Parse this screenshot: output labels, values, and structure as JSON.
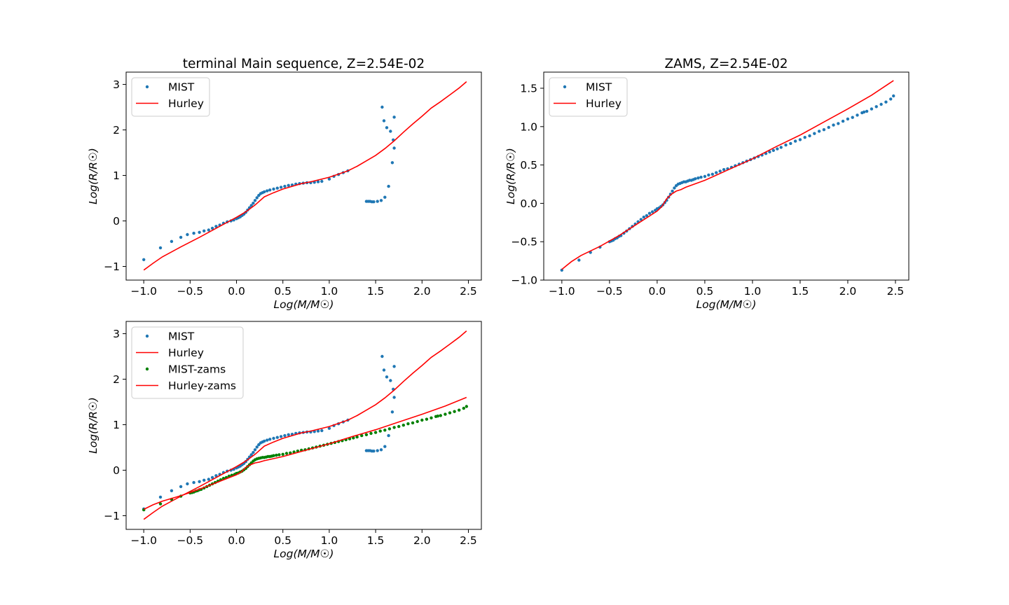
{
  "chart_data": [
    {
      "type": "scatter",
      "title": "terminal Main sequence, Z=2.54E-02",
      "xlabel": "Log(M/M☉)",
      "ylabel": "Log(R/R☉)",
      "xlim": [
        -1.19,
        2.64
      ],
      "ylim": [
        -1.3,
        3.27
      ],
      "xticks": [
        "−1.0",
        "−0.5",
        "0.0",
        "0.5",
        "1.0",
        "1.5",
        "2.0",
        "2.5"
      ],
      "yticks": [
        "−1",
        "0",
        "1",
        "2",
        "3"
      ],
      "grid": false,
      "legend": "top-left",
      "series": [
        {
          "name": "MIST",
          "kind": "points",
          "color": "#1f77b4",
          "key": "mist_tams"
        },
        {
          "name": "Hurley",
          "kind": "line",
          "color": "#ff0000",
          "key": "hurley_tams"
        }
      ]
    },
    {
      "type": "scatter",
      "title": "ZAMS, Z=2.54E-02",
      "xlabel": "Log(M/M☉)",
      "ylabel": "Log(R/R☉)",
      "xlim": [
        -1.19,
        2.64
      ],
      "ylim": [
        -1.0,
        1.71
      ],
      "xticks": [
        "−1.0",
        "−0.5",
        "0.0",
        "0.5",
        "1.0",
        "1.5",
        "2.0",
        "2.5"
      ],
      "yticks": [
        "−1.0",
        "−0.5",
        "0.0",
        "0.5",
        "1.0",
        "1.5"
      ],
      "grid": false,
      "legend": "top-left",
      "series": [
        {
          "name": "MIST",
          "kind": "points",
          "color": "#1f77b4",
          "key": "mist_zams"
        },
        {
          "name": "Hurley",
          "kind": "line",
          "color": "#ff0000",
          "key": "hurley_zams"
        }
      ]
    },
    {
      "type": "scatter",
      "title": "",
      "xlabel": "Log(M/M☉)",
      "ylabel": "Log(R/R☉)",
      "xlim": [
        -1.19,
        2.64
      ],
      "ylim": [
        -1.3,
        3.27
      ],
      "xticks": [
        "−1.0",
        "−0.5",
        "0.0",
        "0.5",
        "1.0",
        "1.5",
        "2.0",
        "2.5"
      ],
      "yticks": [
        "−1",
        "0",
        "1",
        "2",
        "3"
      ],
      "grid": false,
      "legend": "top-left",
      "series": [
        {
          "name": "MIST",
          "kind": "points",
          "color": "#1f77b4",
          "key": "mist_tams"
        },
        {
          "name": "Hurley",
          "kind": "line",
          "color": "#ff0000",
          "key": "hurley_tams"
        },
        {
          "name": "MIST-zams",
          "kind": "points",
          "color": "#008000",
          "key": "mist_zams"
        },
        {
          "name": "Hurley-zams",
          "kind": "line",
          "color": "#ff0000",
          "key": "hurley_zams"
        }
      ]
    }
  ],
  "curves": {
    "mist_tams": [
      [
        -1.0,
        -0.85
      ],
      [
        -0.82,
        -0.59
      ],
      [
        -0.7,
        -0.45
      ],
      [
        -0.6,
        -0.36
      ],
      [
        -0.53,
        -0.3
      ],
      [
        -0.46,
        -0.27
      ],
      [
        -0.4,
        -0.25
      ],
      [
        -0.35,
        -0.22
      ],
      [
        -0.3,
        -0.2
      ],
      [
        -0.26,
        -0.16
      ],
      [
        -0.22,
        -0.12
      ],
      [
        -0.18,
        -0.09
      ],
      [
        -0.14,
        -0.05
      ],
      [
        -0.1,
        -0.02
      ],
      [
        -0.06,
        0.0
      ],
      [
        -0.03,
        0.02
      ],
      [
        0.0,
        0.05
      ],
      [
        0.02,
        0.07
      ],
      [
        0.04,
        0.09
      ],
      [
        0.06,
        0.12
      ],
      [
        0.08,
        0.15
      ],
      [
        0.1,
        0.19
      ],
      [
        0.12,
        0.24
      ],
      [
        0.14,
        0.29
      ],
      [
        0.16,
        0.34
      ],
      [
        0.18,
        0.39
      ],
      [
        0.2,
        0.45
      ],
      [
        0.22,
        0.51
      ],
      [
        0.24,
        0.56
      ],
      [
        0.26,
        0.6
      ],
      [
        0.28,
        0.62
      ],
      [
        0.3,
        0.64
      ],
      [
        0.33,
        0.66
      ],
      [
        0.36,
        0.68
      ],
      [
        0.4,
        0.7
      ],
      [
        0.44,
        0.72
      ],
      [
        0.48,
        0.74
      ],
      [
        0.52,
        0.76
      ],
      [
        0.56,
        0.78
      ],
      [
        0.6,
        0.79
      ],
      [
        0.64,
        0.81
      ],
      [
        0.68,
        0.82
      ],
      [
        0.72,
        0.83
      ],
      [
        0.76,
        0.84
      ],
      [
        0.8,
        0.84
      ],
      [
        0.84,
        0.85
      ],
      [
        0.88,
        0.86
      ],
      [
        0.92,
        0.87
      ],
      [
        1.0,
        0.92
      ],
      [
        1.05,
        0.98
      ],
      [
        1.1,
        1.02
      ],
      [
        1.15,
        1.06
      ],
      [
        1.2,
        1.1
      ],
      [
        1.4,
        0.43
      ],
      [
        1.42,
        0.43
      ],
      [
        1.44,
        0.43
      ],
      [
        1.46,
        0.42
      ],
      [
        1.48,
        0.42
      ],
      [
        1.52,
        0.43
      ],
      [
        1.56,
        0.45
      ],
      [
        1.6,
        0.52
      ],
      [
        1.64,
        0.76
      ],
      [
        1.68,
        1.28
      ],
      [
        1.7,
        1.6
      ],
      [
        1.69,
        1.78
      ],
      [
        1.66,
        1.97
      ],
      [
        1.62,
        2.05
      ],
      [
        1.59,
        2.2
      ],
      [
        1.57,
        2.5
      ],
      [
        1.7,
        2.28
      ]
    ],
    "hurley_tams": [
      [
        -1.0,
        -1.08
      ],
      [
        -0.9,
        -0.93
      ],
      [
        -0.8,
        -0.79
      ],
      [
        -0.6,
        -0.57
      ],
      [
        -0.4,
        -0.36
      ],
      [
        -0.2,
        -0.14
      ],
      [
        0.0,
        0.08
      ],
      [
        0.1,
        0.2
      ],
      [
        0.2,
        0.35
      ],
      [
        0.3,
        0.53
      ],
      [
        0.4,
        0.62
      ],
      [
        0.5,
        0.7
      ],
      [
        0.6,
        0.76
      ],
      [
        0.7,
        0.82
      ],
      [
        0.8,
        0.86
      ],
      [
        0.9,
        0.91
      ],
      [
        1.0,
        0.96
      ],
      [
        1.1,
        1.03
      ],
      [
        1.2,
        1.1
      ],
      [
        1.3,
        1.2
      ],
      [
        1.4,
        1.32
      ],
      [
        1.5,
        1.44
      ],
      [
        1.6,
        1.59
      ],
      [
        1.7,
        1.76
      ],
      [
        1.8,
        1.95
      ],
      [
        1.9,
        2.13
      ],
      [
        2.0,
        2.3
      ],
      [
        2.1,
        2.48
      ],
      [
        2.2,
        2.62
      ],
      [
        2.3,
        2.77
      ],
      [
        2.4,
        2.92
      ],
      [
        2.48,
        3.06
      ]
    ],
    "mist_zams": [
      [
        -1.0,
        -0.87
      ],
      [
        -0.82,
        -0.74
      ],
      [
        -0.7,
        -0.64
      ],
      [
        -0.6,
        -0.57
      ],
      [
        -0.5,
        -0.5
      ],
      [
        -0.48,
        -0.49
      ],
      [
        -0.46,
        -0.48
      ],
      [
        -0.44,
        -0.46
      ],
      [
        -0.42,
        -0.45
      ],
      [
        -0.4,
        -0.43
      ],
      [
        -0.38,
        -0.42
      ],
      [
        -0.35,
        -0.39
      ],
      [
        -0.32,
        -0.36
      ],
      [
        -0.29,
        -0.33
      ],
      [
        -0.26,
        -0.3
      ],
      [
        -0.23,
        -0.27
      ],
      [
        -0.2,
        -0.24
      ],
      [
        -0.17,
        -0.21
      ],
      [
        -0.14,
        -0.18
      ],
      [
        -0.11,
        -0.16
      ],
      [
        -0.08,
        -0.13
      ],
      [
        -0.05,
        -0.11
      ],
      [
        -0.02,
        -0.09
      ],
      [
        0.0,
        -0.07
      ],
      [
        0.02,
        -0.06
      ],
      [
        0.04,
        -0.04
      ],
      [
        0.06,
        -0.02
      ],
      [
        0.08,
        0.01
      ],
      [
        0.1,
        0.04
      ],
      [
        0.12,
        0.08
      ],
      [
        0.14,
        0.12
      ],
      [
        0.16,
        0.16
      ],
      [
        0.18,
        0.2
      ],
      [
        0.2,
        0.23
      ],
      [
        0.22,
        0.25
      ],
      [
        0.24,
        0.26
      ],
      [
        0.26,
        0.27
      ],
      [
        0.28,
        0.28
      ],
      [
        0.3,
        0.28
      ],
      [
        0.32,
        0.29
      ],
      [
        0.34,
        0.3
      ],
      [
        0.36,
        0.3
      ],
      [
        0.38,
        0.31
      ],
      [
        0.4,
        0.32
      ],
      [
        0.43,
        0.33
      ],
      [
        0.46,
        0.34
      ],
      [
        0.5,
        0.35
      ],
      [
        0.54,
        0.37
      ],
      [
        0.58,
        0.38
      ],
      [
        0.62,
        0.4
      ],
      [
        0.66,
        0.42
      ],
      [
        0.7,
        0.44
      ],
      [
        0.74,
        0.45
      ],
      [
        0.78,
        0.47
      ],
      [
        0.82,
        0.49
      ],
      [
        0.86,
        0.51
      ],
      [
        0.9,
        0.53
      ],
      [
        0.94,
        0.55
      ],
      [
        0.98,
        0.57
      ],
      [
        1.02,
        0.59
      ],
      [
        1.06,
        0.61
      ],
      [
        1.1,
        0.63
      ],
      [
        1.14,
        0.65
      ],
      [
        1.18,
        0.67
      ],
      [
        1.22,
        0.69
      ],
      [
        1.26,
        0.71
      ],
      [
        1.3,
        0.73
      ],
      [
        1.35,
        0.76
      ],
      [
        1.4,
        0.78
      ],
      [
        1.45,
        0.81
      ],
      [
        1.5,
        0.83
      ],
      [
        1.55,
        0.86
      ],
      [
        1.6,
        0.88
      ],
      [
        1.65,
        0.91
      ],
      [
        1.7,
        0.94
      ],
      [
        1.75,
        0.96
      ],
      [
        1.8,
        0.99
      ],
      [
        1.85,
        1.02
      ],
      [
        1.9,
        1.04
      ],
      [
        1.95,
        1.07
      ],
      [
        2.0,
        1.1
      ],
      [
        2.05,
        1.12
      ],
      [
        2.1,
        1.15
      ],
      [
        2.15,
        1.18
      ],
      [
        2.17,
        1.19
      ],
      [
        2.2,
        1.2
      ],
      [
        2.25,
        1.23
      ],
      [
        2.3,
        1.26
      ],
      [
        2.35,
        1.29
      ],
      [
        2.4,
        1.32
      ],
      [
        2.45,
        1.36
      ],
      [
        2.48,
        1.4
      ]
    ],
    "hurley_zams": [
      [
        -1.0,
        -0.86
      ],
      [
        -0.9,
        -0.76
      ],
      [
        -0.8,
        -0.68
      ],
      [
        -0.6,
        -0.56
      ],
      [
        -0.4,
        -0.42
      ],
      [
        -0.2,
        -0.26
      ],
      [
        0.0,
        -0.1
      ],
      [
        0.05,
        -0.04
      ],
      [
        0.1,
        0.06
      ],
      [
        0.15,
        0.12
      ],
      [
        0.2,
        0.16
      ],
      [
        0.25,
        0.18
      ],
      [
        0.3,
        0.21
      ],
      [
        0.5,
        0.3
      ],
      [
        0.75,
        0.44
      ],
      [
        1.0,
        0.58
      ],
      [
        1.25,
        0.74
      ],
      [
        1.5,
        0.89
      ],
      [
        1.75,
        1.06
      ],
      [
        2.0,
        1.23
      ],
      [
        2.25,
        1.41
      ],
      [
        2.48,
        1.6
      ]
    ]
  }
}
